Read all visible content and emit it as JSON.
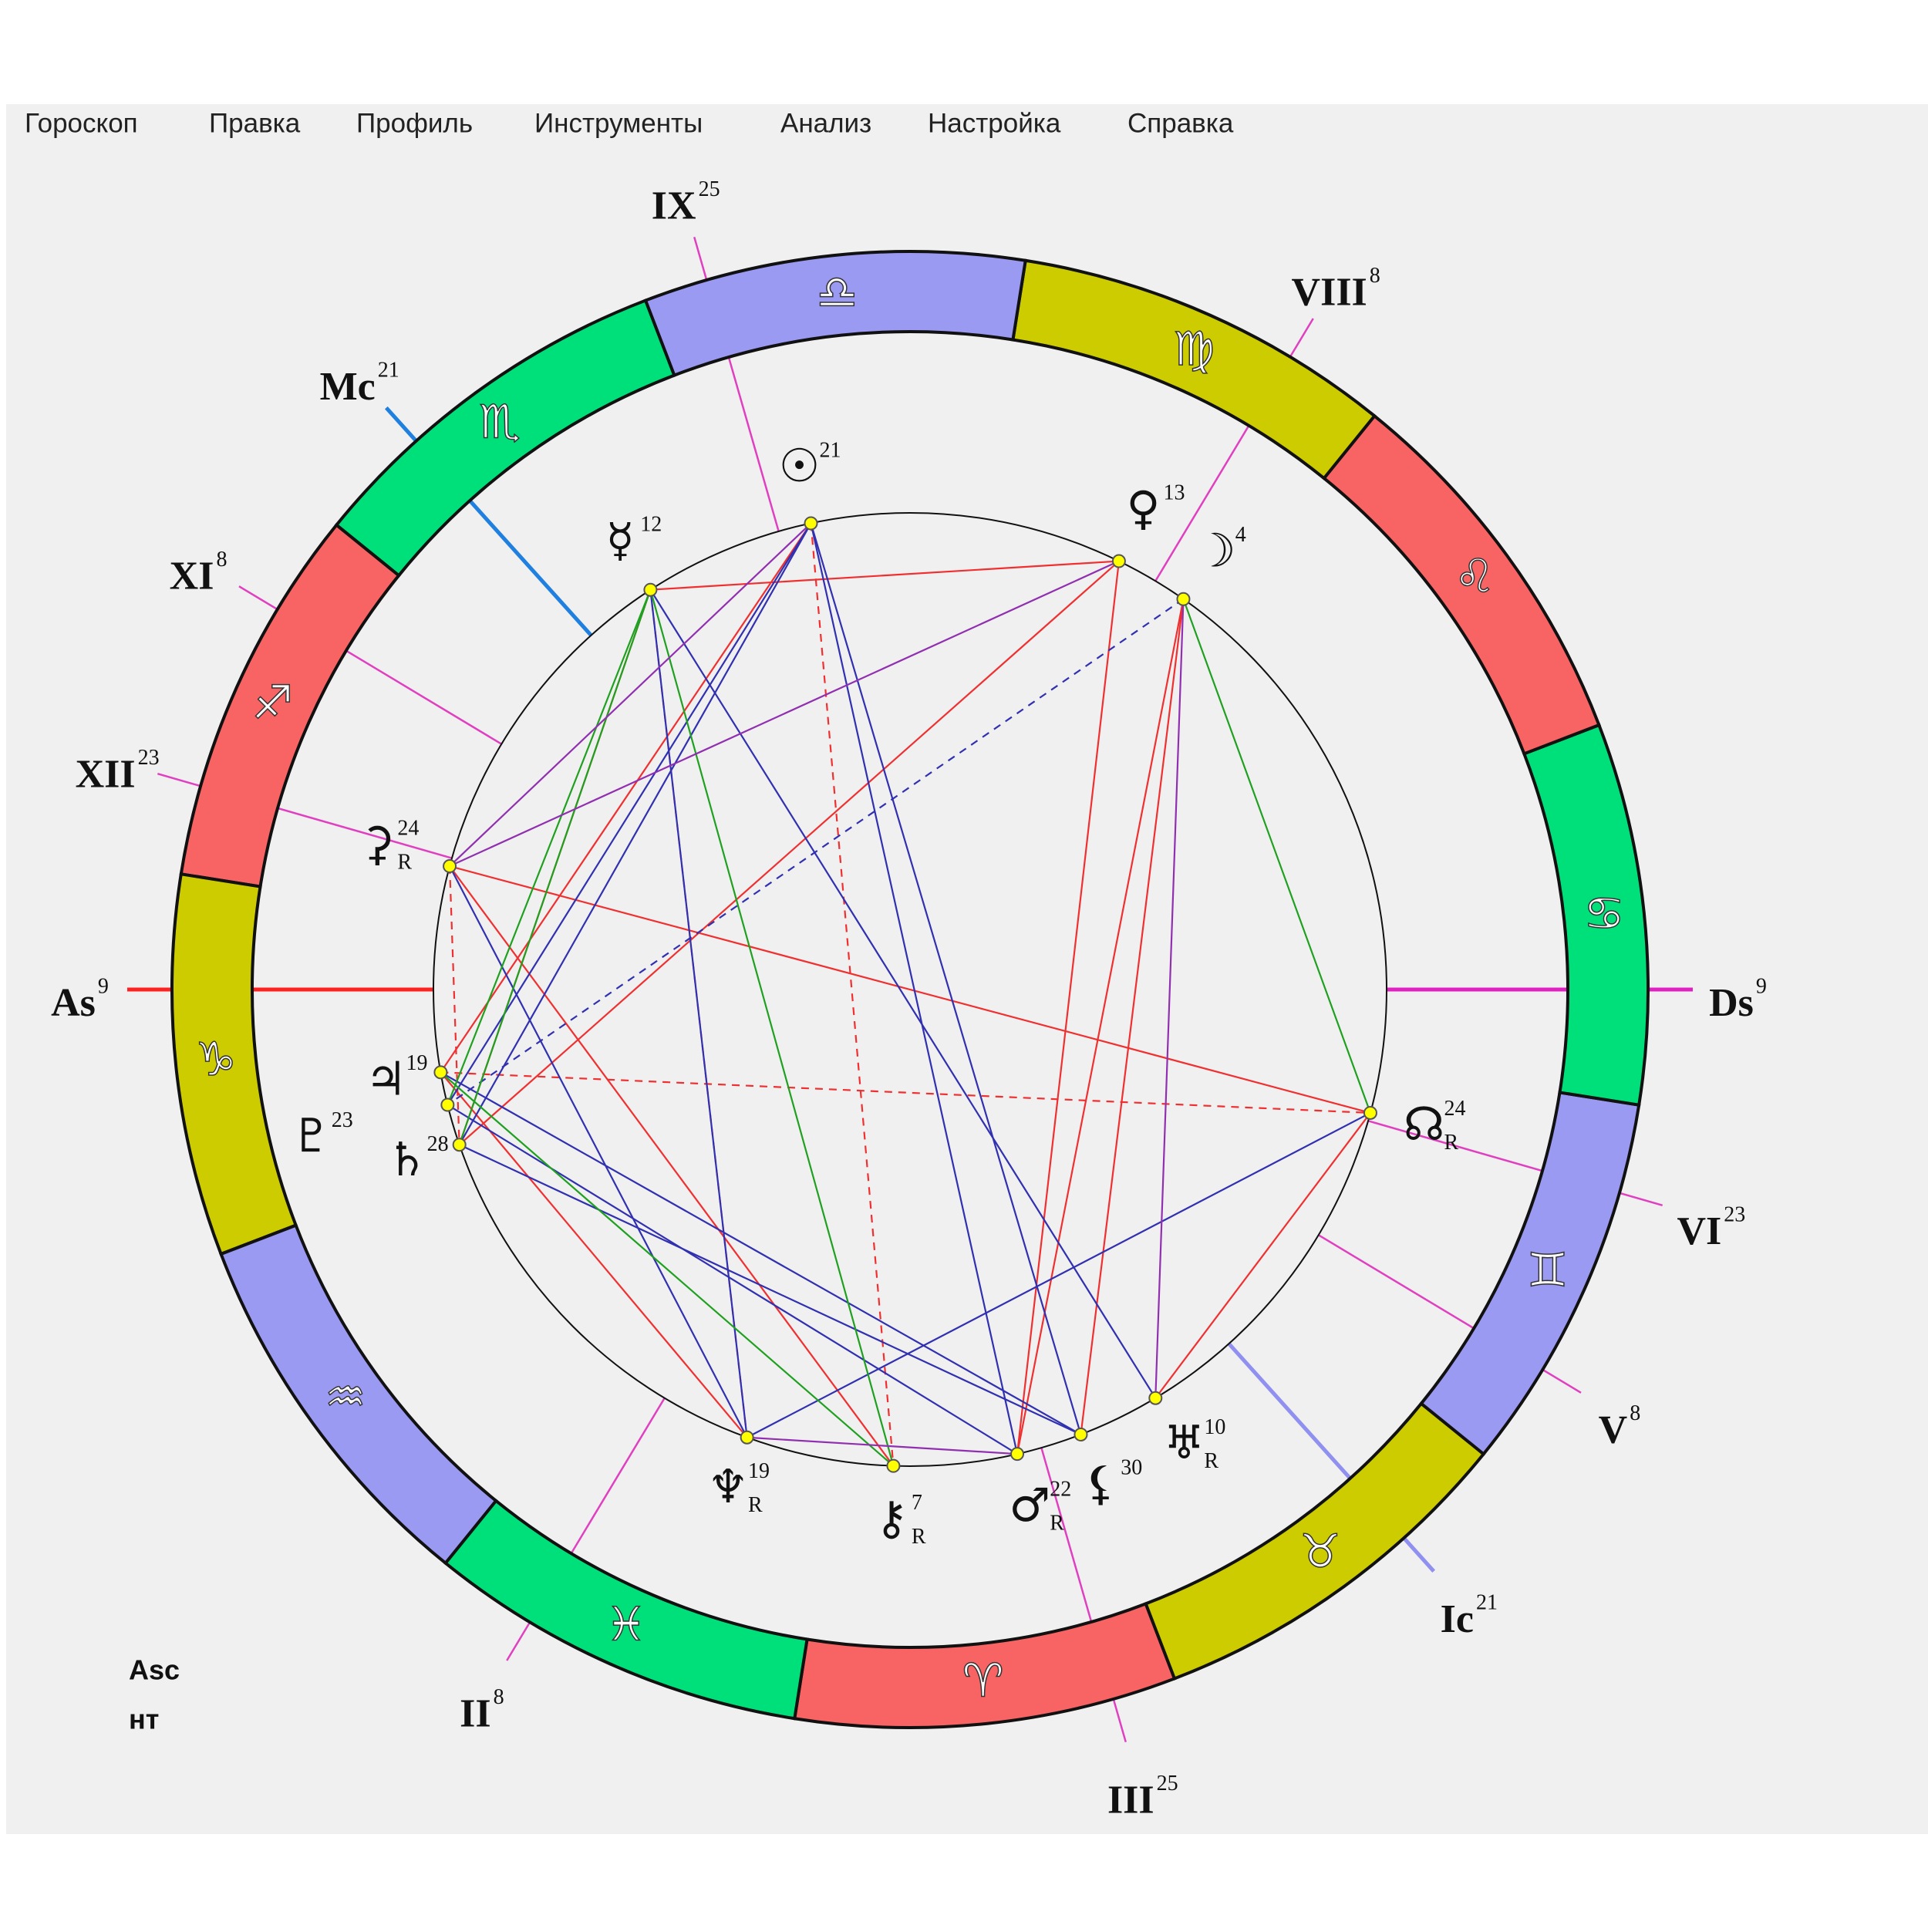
{
  "menu": [
    "Гороскоп",
    "Правка",
    "Профиль",
    "Инструменты",
    "Анализ",
    "Настройка",
    "Справка"
  ],
  "chart": {
    "signs": [
      "♈",
      "♉",
      "♊",
      "♋",
      "♌",
      "♍",
      "♎",
      "♏",
      "♐",
      "♑",
      "♒",
      "♓"
    ],
    "houses": [
      {
        "label": "As",
        "degree": 9,
        "longitude": 279,
        "color": "#ff2020"
      },
      {
        "label": "XII",
        "degree": 23,
        "longitude": 263,
        "color": "#e040c0"
      },
      {
        "label": "XI",
        "degree": 8,
        "longitude": 248,
        "color": "#e040c0"
      },
      {
        "label": "Mc",
        "degree": 21,
        "longitude": 231,
        "color": "#2080e0"
      },
      {
        "label": "IX",
        "degree": 25,
        "longitude": 205,
        "color": "#e040c0"
      },
      {
        "label": "VIII",
        "degree": 8,
        "longitude": 158,
        "color": "#e040c0"
      },
      {
        "label": "Ds",
        "degree": 9,
        "longitude": 99,
        "color": "#e020c0"
      },
      {
        "label": "VI",
        "degree": 23,
        "longitude": 83,
        "color": "#e040c0"
      },
      {
        "label": "V",
        "degree": 8,
        "longitude": 68,
        "color": "#e040c0"
      },
      {
        "label": "Ic",
        "degree": 21,
        "longitude": 51,
        "color": "#9090f0"
      },
      {
        "label": "III",
        "degree": 25,
        "longitude": 25,
        "color": "#e040c0"
      },
      {
        "label": "II",
        "degree": 8,
        "longitude": 338,
        "color": "#e040c0"
      }
    ],
    "planets": [
      {
        "glyph": "☉",
        "degree": 21,
        "longitude": 201
      },
      {
        "glyph": "☿",
        "degree": 12,
        "longitude": 222
      },
      {
        "glyph": "♀",
        "degree": 13,
        "longitude": 163
      },
      {
        "glyph": "☽",
        "degree": 4,
        "longitude": 154
      },
      {
        "glyph": "☊",
        "degree": 24,
        "retro": "R",
        "longitude": 84
      },
      {
        "glyph": "♅",
        "degree": 10,
        "retro": "R",
        "longitude": 40
      },
      {
        "glyph": "⚸",
        "degree": 30,
        "longitude": 30
      },
      {
        "glyph": "♂",
        "degree": 22,
        "retro": "R",
        "longitude": 22
      },
      {
        "glyph": "⚷",
        "degree": 7,
        "retro": "R",
        "longitude": 7
      },
      {
        "glyph": "♆",
        "degree": 19,
        "retro": "R",
        "longitude": 349
      },
      {
        "glyph": "♃",
        "degree": 19,
        "longitude": 289
      },
      {
        "glyph": "♄",
        "degree": 28,
        "longitude": 298
      },
      {
        "glyph": "♇",
        "degree": 23,
        "longitude": 293
      },
      {
        "glyph": "⚳",
        "degree": 24,
        "retro": "R",
        "longitude": 264
      }
    ]
  },
  "footer": [
    "Asc",
    "нт"
  ]
}
